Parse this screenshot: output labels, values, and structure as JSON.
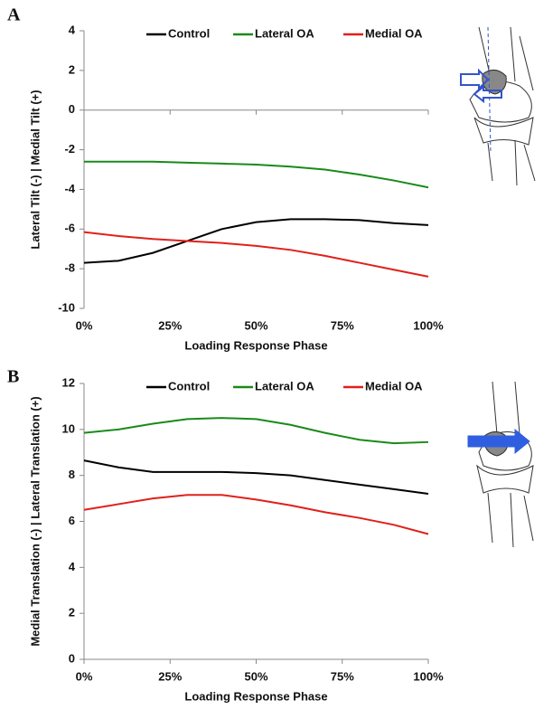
{
  "chart_data": [
    {
      "type": "line",
      "panel_label": "A",
      "x": [
        0,
        10,
        20,
        30,
        40,
        50,
        60,
        70,
        80,
        90,
        100
      ],
      "series": [
        {
          "name": "Control",
          "color": "#000000",
          "values": [
            -7.7,
            -7.6,
            -7.2,
            -6.6,
            -6.0,
            -5.65,
            -5.5,
            -5.5,
            -5.55,
            -5.7,
            -5.8
          ]
        },
        {
          "name": "Lateral OA",
          "color": "#1a8a1a",
          "values": [
            -2.6,
            -2.6,
            -2.6,
            -2.65,
            -2.7,
            -2.75,
            -2.85,
            -3.0,
            -3.25,
            -3.55,
            -3.9
          ]
        },
        {
          "name": "Medial OA",
          "color": "#e0201b",
          "values": [
            -6.15,
            -6.35,
            -6.5,
            -6.6,
            -6.7,
            -6.85,
            -7.05,
            -7.35,
            -7.7,
            -8.05,
            -8.4
          ]
        }
      ],
      "xlim": [
        0,
        100
      ],
      "xticks": [
        {
          "value": 0,
          "label": "0%"
        },
        {
          "value": 25,
          "label": "25%"
        },
        {
          "value": 50,
          "label": "50%"
        },
        {
          "value": 75,
          "label": "75%"
        },
        {
          "value": 100,
          "label": "100%"
        }
      ],
      "ylim": [
        -10,
        4
      ],
      "yticks": [
        4,
        2,
        0,
        -2,
        -4,
        -6,
        -8,
        -10
      ],
      "x_label": "Loading Response Phase",
      "y_label": "Lateral Tilt (-) | Medial Tilt (+)",
      "legend": "top"
    },
    {
      "type": "line",
      "panel_label": "B",
      "x": [
        0,
        10,
        20,
        30,
        40,
        50,
        60,
        70,
        80,
        90,
        100
      ],
      "series": [
        {
          "name": "Control",
          "color": "#000000",
          "values": [
            8.65,
            8.35,
            8.15,
            8.15,
            8.15,
            8.1,
            8.0,
            7.8,
            7.6,
            7.4,
            7.2
          ]
        },
        {
          "name": "Lateral OA",
          "color": "#1a8a1a",
          "values": [
            9.85,
            10.0,
            10.25,
            10.45,
            10.5,
            10.45,
            10.2,
            9.85,
            9.55,
            9.4,
            9.45
          ]
        },
        {
          "name": "Medial OA",
          "color": "#e0201b",
          "values": [
            6.5,
            6.75,
            7.0,
            7.15,
            7.15,
            6.95,
            6.7,
            6.4,
            6.15,
            5.85,
            5.45
          ]
        }
      ],
      "xlim": [
        0,
        100
      ],
      "xticks": [
        {
          "value": 0,
          "label": "0%"
        },
        {
          "value": 25,
          "label": "25%"
        },
        {
          "value": 50,
          "label": "50%"
        },
        {
          "value": 75,
          "label": "75%"
        },
        {
          "value": 100,
          "label": "100%"
        }
      ],
      "ylim": [
        0,
        12
      ],
      "yticks": [
        0,
        2,
        4,
        6,
        8,
        10,
        12
      ],
      "x_label": "Loading Response Phase",
      "y_label": "Medial Translation (-) | Lateral Translation (+)",
      "legend": "top"
    }
  ]
}
